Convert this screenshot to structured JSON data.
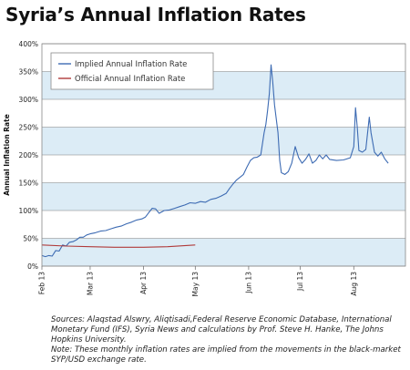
{
  "page": {
    "title": "Syria’s Annual Inflation Rates"
  },
  "chart_data": {
    "type": "line",
    "title": "Syria’s Annual Inflation Rates",
    "xlabel": "",
    "ylabel": "Annual Inflation Rate",
    "ylim": [
      0,
      400
    ],
    "yticks": [
      0,
      50,
      100,
      150,
      200,
      250,
      300,
      350,
      400
    ],
    "ytick_labels": [
      "0%",
      "50%",
      "100%",
      "150%",
      "200%",
      "250%",
      "300%",
      "350%",
      "400%"
    ],
    "xlim": [
      "2013-02-01",
      "2013-08-31"
    ],
    "xtick_labels": [
      {
        "date": "2013-02-01",
        "label": "Feb 13"
      },
      {
        "date": "2013-03-01",
        "label": "Mar 13"
      },
      {
        "date": "2013-04-01",
        "label": "Apr 13"
      },
      {
        "date": "2013-05-01",
        "label": "May 13"
      },
      {
        "date": "2013-06-01",
        "label": "Jun 13"
      },
      {
        "date": "2013-07-01",
        "label": "Jul 13"
      },
      {
        "date": "2013-08-01",
        "label": "Aug 13"
      }
    ],
    "grid": true,
    "background_bands": [
      "#dcecf6",
      "#ffffff"
    ],
    "legend_position": "top-left",
    "series": [
      {
        "name": "Implied Annual Inflation Rate",
        "color": "#3d6bb3",
        "points": [
          [
            "2013-02-01",
            19
          ],
          [
            "2013-02-03",
            17
          ],
          [
            "2013-02-05",
            19
          ],
          [
            "2013-02-07",
            18
          ],
          [
            "2013-02-09",
            28
          ],
          [
            "2013-02-11",
            27
          ],
          [
            "2013-02-13",
            38
          ],
          [
            "2013-02-15",
            36
          ],
          [
            "2013-02-17",
            43
          ],
          [
            "2013-02-19",
            44
          ],
          [
            "2013-02-21",
            47
          ],
          [
            "2013-02-23",
            52
          ],
          [
            "2013-02-25",
            52
          ],
          [
            "2013-02-27",
            56
          ],
          [
            "2013-03-01",
            58
          ],
          [
            "2013-03-04",
            60
          ],
          [
            "2013-03-07",
            63
          ],
          [
            "2013-03-10",
            64
          ],
          [
            "2013-03-13",
            67
          ],
          [
            "2013-03-16",
            70
          ],
          [
            "2013-03-19",
            72
          ],
          [
            "2013-03-22",
            76
          ],
          [
            "2013-03-25",
            79
          ],
          [
            "2013-03-28",
            83
          ],
          [
            "2013-03-31",
            85
          ],
          [
            "2013-04-02",
            88
          ],
          [
            "2013-04-04",
            96
          ],
          [
            "2013-04-06",
            104
          ],
          [
            "2013-04-08",
            103
          ],
          [
            "2013-04-10",
            95
          ],
          [
            "2013-04-13",
            100
          ],
          [
            "2013-04-16",
            101
          ],
          [
            "2013-04-19",
            104
          ],
          [
            "2013-04-22",
            107
          ],
          [
            "2013-04-25",
            110
          ],
          [
            "2013-04-28",
            114
          ],
          [
            "2013-05-01",
            113
          ],
          [
            "2013-05-04",
            116
          ],
          [
            "2013-05-07",
            115
          ],
          [
            "2013-05-10",
            120
          ],
          [
            "2013-05-13",
            122
          ],
          [
            "2013-05-16",
            126
          ],
          [
            "2013-05-19",
            131
          ],
          [
            "2013-05-21",
            140
          ],
          [
            "2013-05-23",
            148
          ],
          [
            "2013-05-25",
            155
          ],
          [
            "2013-05-27",
            160
          ],
          [
            "2013-05-29",
            165
          ],
          [
            "2013-05-31",
            178
          ],
          [
            "2013-06-02",
            190
          ],
          [
            "2013-06-04",
            195
          ],
          [
            "2013-06-06",
            196
          ],
          [
            "2013-06-08",
            200
          ],
          [
            "2013-06-10",
            240
          ],
          [
            "2013-06-11",
            255
          ],
          [
            "2013-06-12",
            280
          ],
          [
            "2013-06-13",
            310
          ],
          [
            "2013-06-14",
            362
          ],
          [
            "2013-06-15",
            330
          ],
          [
            "2013-06-16",
            290
          ],
          [
            "2013-06-18",
            240
          ],
          [
            "2013-06-19",
            190
          ],
          [
            "2013-06-20",
            168
          ],
          [
            "2013-06-22",
            165
          ],
          [
            "2013-06-24",
            170
          ],
          [
            "2013-06-26",
            185
          ],
          [
            "2013-06-28",
            215
          ],
          [
            "2013-06-30",
            195
          ],
          [
            "2013-07-02",
            185
          ],
          [
            "2013-07-04",
            192
          ],
          [
            "2013-07-06",
            202
          ],
          [
            "2013-07-08",
            185
          ],
          [
            "2013-07-10",
            190
          ],
          [
            "2013-07-12",
            200
          ],
          [
            "2013-07-14",
            193
          ],
          [
            "2013-07-16",
            200
          ],
          [
            "2013-07-18",
            192
          ],
          [
            "2013-07-22",
            190
          ],
          [
            "2013-07-26",
            191
          ],
          [
            "2013-07-30",
            195
          ],
          [
            "2013-08-01",
            215
          ],
          [
            "2013-08-02",
            285
          ],
          [
            "2013-08-03",
            250
          ],
          [
            "2013-08-04",
            208
          ],
          [
            "2013-08-06",
            205
          ],
          [
            "2013-08-08",
            210
          ],
          [
            "2013-08-10",
            268
          ],
          [
            "2013-08-11",
            240
          ],
          [
            "2013-08-13",
            205
          ],
          [
            "2013-08-15",
            198
          ],
          [
            "2013-08-17",
            205
          ],
          [
            "2013-08-19",
            193
          ],
          [
            "2013-08-21",
            185
          ]
        ]
      },
      {
        "name": "Official Annual Inflation Rate",
        "color": "#b03a3a",
        "points": [
          [
            "2013-02-01",
            38
          ],
          [
            "2013-02-15",
            36
          ],
          [
            "2013-03-01",
            35
          ],
          [
            "2013-03-15",
            34
          ],
          [
            "2013-04-01",
            34
          ],
          [
            "2013-04-15",
            35
          ],
          [
            "2013-05-01",
            38
          ]
        ]
      }
    ]
  },
  "source_note": {
    "sources": "Sources: Alaqstad Alswry, Aliqtisadi,Federal Reserve Economic Database, International Monetary Fund (IFS), Syria News and calculations by Prof. Steve H. Hanke, The Johns Hopkins University.",
    "note": "Note: These monthly inflation rates are implied from the movements in the black-market SYP/USD exchange rate."
  }
}
